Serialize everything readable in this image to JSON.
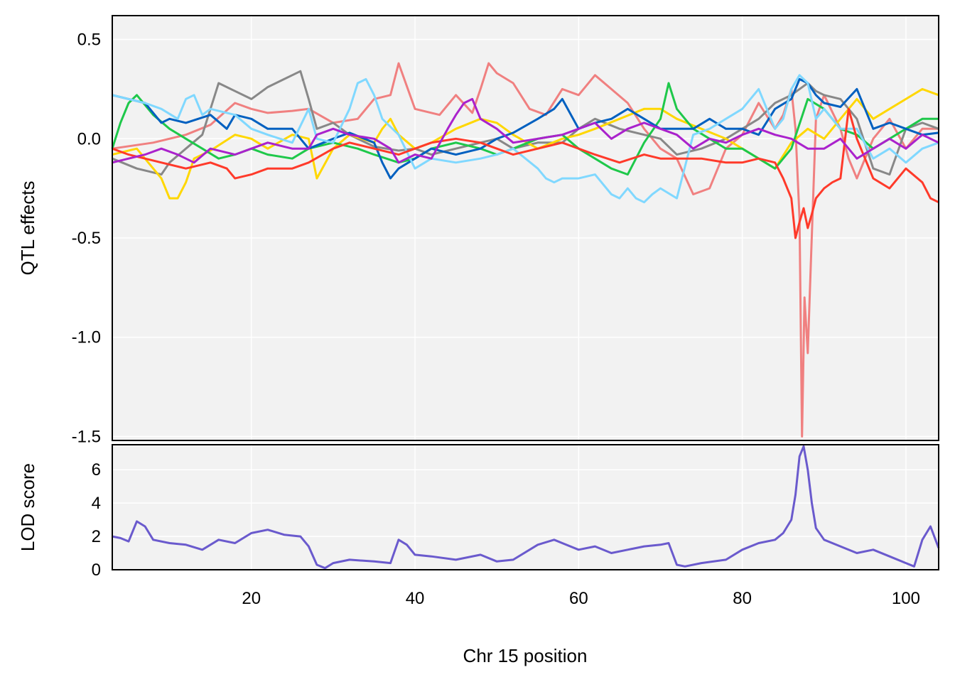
{
  "chart_data": [
    {
      "type": "line",
      "panel": "effects",
      "ylabel": "QTL effects",
      "xlim": [
        3,
        104
      ],
      "ylim": [
        -1.52,
        0.62
      ],
      "yticks": [
        "0.5",
        "0.0",
        "-0.5",
        "-1.0",
        "-1.5"
      ],
      "ytick_values": [
        0.5,
        0.0,
        -0.5,
        -1.0,
        -1.5
      ],
      "grid": true,
      "background": "#f2f2f2",
      "series": [
        {
          "color": "#f08080",
          "x": [
            3,
            8,
            12,
            15,
            18,
            20,
            22,
            25,
            27,
            30,
            33,
            35,
            37,
            38,
            40,
            43,
            45,
            47,
            48,
            49,
            50,
            52,
            54,
            56,
            58,
            60,
            62,
            64,
            66,
            68,
            70,
            72,
            74,
            76,
            78,
            80,
            82,
            84,
            85,
            86,
            86.5,
            87,
            87.3,
            87.6,
            88,
            88.4,
            89,
            90,
            92,
            93,
            94,
            96,
            98,
            100,
            102,
            104
          ],
          "y": [
            -0.05,
            -0.02,
            0.02,
            0.07,
            0.18,
            0.15,
            0.13,
            0.14,
            0.15,
            0.08,
            0.1,
            0.2,
            0.22,
            0.38,
            0.15,
            0.12,
            0.22,
            0.13,
            0.25,
            0.38,
            0.33,
            0.28,
            0.15,
            0.12,
            0.25,
            0.22,
            0.32,
            0.25,
            0.18,
            0.05,
            -0.05,
            -0.1,
            -0.28,
            -0.25,
            -0.05,
            0.02,
            0.18,
            0.05,
            0.12,
            0.25,
            0.05,
            -0.4,
            -1.5,
            -0.8,
            -1.08,
            -0.6,
            0.1,
            0.22,
            0.05,
            -0.1,
            -0.2,
            0.0,
            0.1,
            -0.05,
            0.05,
            0.05
          ]
        },
        {
          "color": "#888888",
          "x": [
            3,
            6,
            9,
            10,
            12,
            14,
            16,
            18,
            20,
            22,
            24,
            25,
            26,
            27,
            28,
            30,
            32,
            35,
            38,
            40,
            42,
            45,
            48,
            50,
            52,
            55,
            58,
            60,
            62,
            65,
            68,
            70,
            72,
            75,
            78,
            80,
            82,
            84,
            85,
            86,
            87,
            88,
            89,
            90,
            92,
            94,
            96,
            98,
            100,
            102,
            104
          ],
          "y": [
            -0.1,
            -0.15,
            -0.18,
            -0.12,
            -0.05,
            0.02,
            0.28,
            0.24,
            0.2,
            0.26,
            0.3,
            0.32,
            0.34,
            0.2,
            0.05,
            0.08,
            0.02,
            -0.04,
            -0.06,
            -0.05,
            -0.08,
            -0.05,
            -0.02,
            0.0,
            -0.05,
            -0.02,
            -0.02,
            0.05,
            0.1,
            0.05,
            0.02,
            0.0,
            -0.08,
            -0.05,
            0.0,
            0.05,
            0.1,
            0.18,
            0.2,
            0.22,
            0.25,
            0.28,
            0.24,
            0.22,
            0.2,
            0.1,
            -0.15,
            -0.18,
            0.05,
            0.08,
            0.05
          ]
        },
        {
          "color": "#ffd700",
          "x": [
            3,
            6,
            8,
            9,
            10,
            11,
            12,
            13,
            15,
            18,
            20,
            22,
            25,
            27,
            28,
            30,
            32,
            35,
            36,
            37,
            38,
            40,
            42,
            45,
            48,
            50,
            52,
            55,
            58,
            60,
            62,
            65,
            68,
            70,
            72,
            75,
            78,
            80,
            82,
            84,
            86,
            88,
            90,
            92,
            94,
            96,
            98,
            100,
            102,
            104
          ],
          "y": [
            -0.08,
            -0.05,
            -0.15,
            -0.2,
            -0.3,
            -0.3,
            -0.22,
            -0.1,
            -0.06,
            0.02,
            0.0,
            -0.05,
            0.02,
            0.0,
            -0.2,
            -0.05,
            0.02,
            -0.02,
            0.05,
            0.1,
            0.02,
            -0.05,
            -0.02,
            0.05,
            0.1,
            0.08,
            0.02,
            -0.05,
            0.0,
            0.02,
            0.05,
            0.1,
            0.15,
            0.15,
            0.1,
            0.05,
            0.0,
            -0.05,
            -0.1,
            -0.15,
            -0.02,
            0.05,
            0.0,
            0.1,
            0.2,
            0.1,
            0.15,
            0.2,
            0.25,
            0.22
          ]
        },
        {
          "color": "#1ec84a",
          "x": [
            3,
            4,
            5,
            6,
            8,
            10,
            12,
            14,
            16,
            18,
            20,
            22,
            25,
            27,
            30,
            33,
            35,
            38,
            40,
            42,
            45,
            48,
            50,
            52,
            55,
            58,
            60,
            62,
            64,
            66,
            68,
            70,
            71,
            72,
            73,
            74,
            76,
            78,
            80,
            82,
            84,
            86,
            88,
            90,
            92,
            94,
            96,
            98,
            100,
            102,
            104
          ],
          "y": [
            -0.05,
            0.08,
            0.18,
            0.22,
            0.12,
            0.05,
            0.0,
            -0.05,
            -0.1,
            -0.08,
            -0.05,
            -0.08,
            -0.1,
            -0.05,
            -0.02,
            -0.05,
            -0.08,
            -0.12,
            -0.1,
            -0.05,
            -0.02,
            -0.05,
            -0.08,
            -0.05,
            0.0,
            0.02,
            -0.05,
            -0.1,
            -0.15,
            -0.18,
            -0.02,
            0.1,
            0.28,
            0.15,
            0.1,
            0.05,
            0.0,
            -0.05,
            -0.05,
            -0.1,
            -0.15,
            -0.05,
            0.2,
            0.15,
            0.05,
            0.02,
            -0.05,
            0.0,
            0.05,
            0.1,
            0.1
          ]
        },
        {
          "color": "#0060c0",
          "x": [
            3,
            5,
            7,
            9,
            10,
            12,
            15,
            17,
            18,
            20,
            22,
            25,
            27,
            30,
            32,
            35,
            36,
            37,
            38,
            40,
            42,
            45,
            48,
            50,
            52,
            55,
            57,
            58,
            60,
            62,
            64,
            66,
            68,
            70,
            72,
            74,
            76,
            78,
            80,
            82,
            84,
            86,
            87,
            88,
            89,
            90,
            92,
            94,
            96,
            98,
            100,
            102,
            104
          ],
          "y": [
            0.22,
            0.2,
            0.18,
            0.08,
            0.1,
            0.08,
            0.12,
            0.05,
            0.12,
            0.1,
            0.05,
            0.05,
            -0.05,
            0.0,
            0.03,
            -0.02,
            -0.12,
            -0.2,
            -0.15,
            -0.1,
            -0.05,
            -0.08,
            -0.05,
            0.0,
            0.03,
            0.1,
            0.15,
            0.2,
            0.05,
            0.08,
            0.1,
            0.15,
            0.1,
            0.05,
            0.05,
            0.05,
            0.1,
            0.05,
            0.05,
            0.02,
            0.15,
            0.2,
            0.3,
            0.28,
            0.22,
            0.18,
            0.16,
            0.25,
            0.05,
            0.08,
            0.05,
            0.02,
            0.03
          ]
        },
        {
          "color": "#80d8ff",
          "x": [
            3,
            5,
            7,
            9,
            11,
            12,
            13,
            14,
            15,
            18,
            20,
            22,
            25,
            27,
            28,
            30,
            32,
            33,
            34,
            35,
            36,
            38,
            40,
            42,
            45,
            48,
            50,
            52,
            55,
            56,
            57,
            58,
            60,
            62,
            64,
            65,
            66,
            67,
            68,
            69,
            70,
            72,
            74,
            76,
            78,
            80,
            82,
            84,
            85,
            86,
            87,
            88,
            89,
            90,
            92,
            94,
            96,
            98,
            100,
            102,
            104
          ],
          "y": [
            0.22,
            0.2,
            0.18,
            0.15,
            0.1,
            0.2,
            0.22,
            0.12,
            0.15,
            0.12,
            0.05,
            0.02,
            -0.02,
            0.15,
            0.0,
            -0.02,
            0.15,
            0.28,
            0.3,
            0.22,
            0.1,
            0.02,
            -0.15,
            -0.1,
            -0.12,
            -0.1,
            -0.08,
            -0.05,
            -0.15,
            -0.2,
            -0.22,
            -0.2,
            -0.2,
            -0.18,
            -0.28,
            -0.3,
            -0.25,
            -0.3,
            -0.32,
            -0.28,
            -0.25,
            -0.3,
            0.02,
            0.05,
            0.1,
            0.15,
            0.25,
            0.05,
            0.1,
            0.25,
            0.32,
            0.28,
            0.1,
            0.15,
            0.05,
            0.05,
            -0.1,
            -0.05,
            -0.12,
            -0.05,
            -0.02
          ]
        },
        {
          "color": "#ff3a2a",
          "x": [
            3,
            5,
            7,
            9,
            12,
            15,
            17,
            18,
            20,
            22,
            25,
            27,
            30,
            32,
            35,
            38,
            40,
            42,
            45,
            48,
            50,
            52,
            55,
            58,
            60,
            62,
            65,
            68,
            70,
            72,
            75,
            78,
            80,
            82,
            84,
            85,
            86,
            86.5,
            87,
            87.5,
            88,
            88.5,
            89,
            90,
            91,
            92,
            93,
            94,
            96,
            98,
            100,
            102,
            103,
            104
          ],
          "y": [
            -0.05,
            -0.08,
            -0.1,
            -0.12,
            -0.15,
            -0.12,
            -0.15,
            -0.2,
            -0.18,
            -0.15,
            -0.15,
            -0.12,
            -0.05,
            -0.02,
            -0.05,
            -0.08,
            -0.05,
            -0.02,
            0.0,
            -0.02,
            -0.05,
            -0.08,
            -0.05,
            -0.02,
            -0.05,
            -0.08,
            -0.12,
            -0.08,
            -0.1,
            -0.1,
            -0.1,
            -0.12,
            -0.12,
            -0.1,
            -0.12,
            -0.2,
            -0.3,
            -0.5,
            -0.42,
            -0.35,
            -0.45,
            -0.38,
            -0.3,
            -0.25,
            -0.22,
            -0.2,
            0.15,
            0.0,
            -0.2,
            -0.25,
            -0.15,
            -0.22,
            -0.3,
            -0.32
          ]
        },
        {
          "color": "#aa22cc",
          "x": [
            3,
            5,
            7,
            9,
            11,
            13,
            15,
            18,
            20,
            22,
            25,
            27,
            28,
            30,
            32,
            35,
            37,
            38,
            40,
            42,
            44,
            45,
            46,
            47,
            48,
            50,
            52,
            55,
            58,
            60,
            62,
            64,
            66,
            68,
            70,
            72,
            74,
            76,
            78,
            80,
            82,
            84,
            86,
            88,
            90,
            92,
            94,
            96,
            98,
            100,
            102,
            104
          ],
          "y": [
            -0.12,
            -0.1,
            -0.08,
            -0.05,
            -0.08,
            -0.12,
            -0.05,
            -0.08,
            -0.05,
            -0.02,
            -0.05,
            -0.05,
            0.02,
            0.05,
            0.02,
            0.0,
            -0.05,
            -0.12,
            -0.08,
            -0.1,
            0.05,
            0.12,
            0.18,
            0.2,
            0.1,
            0.05,
            -0.02,
            0.0,
            0.02,
            0.05,
            0.08,
            0.0,
            0.05,
            0.08,
            0.05,
            0.02,
            -0.05,
            0.0,
            -0.02,
            0.02,
            0.05,
            0.02,
            0.0,
            -0.05,
            -0.05,
            0.0,
            -0.1,
            -0.05,
            0.0,
            -0.05,
            0.02,
            -0.02
          ]
        }
      ]
    },
    {
      "type": "line",
      "panel": "lod",
      "ylabel": "LOD score",
      "xlabel": "Chr 15 position",
      "xlim": [
        3,
        104
      ],
      "ylim": [
        0,
        7.5
      ],
      "yticks": [
        "0",
        "2",
        "4",
        "6"
      ],
      "ytick_values": [
        0,
        2,
        4,
        6
      ],
      "xticks": [
        "20",
        "40",
        "60",
        "80",
        "100"
      ],
      "xtick_values": [
        20,
        40,
        60,
        80,
        100
      ],
      "grid": true,
      "background": "#f2f2f2",
      "series": [
        {
          "color": "#6a5acd",
          "x": [
            3,
            4,
            5,
            6,
            7,
            8,
            10,
            12,
            14,
            16,
            18,
            20,
            22,
            24,
            26,
            27,
            28,
            29,
            30,
            32,
            35,
            37,
            38,
            39,
            40,
            42,
            45,
            48,
            50,
            52,
            55,
            57,
            58,
            60,
            62,
            64,
            66,
            68,
            70,
            71,
            72,
            73,
            75,
            78,
            80,
            82,
            84,
            85,
            86,
            86.5,
            87,
            87.5,
            88,
            88.5,
            89,
            90,
            92,
            94,
            96,
            98,
            100,
            101,
            102,
            103,
            104
          ],
          "y": [
            2.0,
            1.9,
            1.7,
            2.9,
            2.6,
            1.8,
            1.6,
            1.5,
            1.2,
            1.8,
            1.6,
            2.2,
            2.4,
            2.1,
            2.0,
            1.4,
            0.3,
            0.1,
            0.4,
            0.6,
            0.5,
            0.4,
            1.8,
            1.5,
            0.9,
            0.8,
            0.6,
            0.9,
            0.5,
            0.6,
            1.5,
            1.8,
            1.6,
            1.2,
            1.4,
            1.0,
            1.2,
            1.4,
            1.5,
            1.6,
            0.3,
            0.2,
            0.4,
            0.6,
            1.2,
            1.6,
            1.8,
            2.2,
            3.0,
            4.5,
            6.8,
            7.4,
            6.0,
            4.0,
            2.5,
            1.8,
            1.4,
            1.0,
            1.2,
            0.8,
            0.4,
            0.2,
            1.8,
            2.6,
            1.3
          ]
        }
      ]
    }
  ]
}
